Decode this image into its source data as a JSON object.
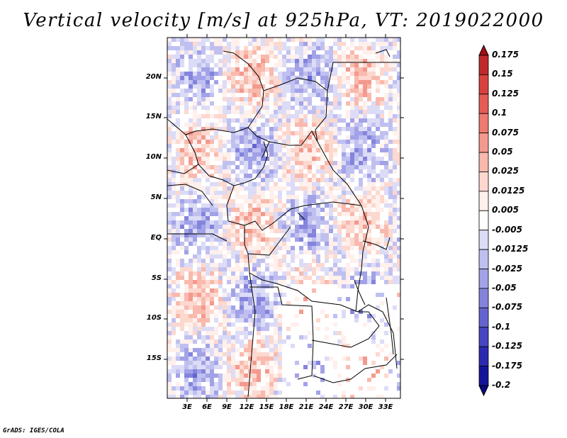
{
  "title": "Vertical velocity [m/s] at 925hPa, VT: 2019022000",
  "credit": "GrADS: IGES/COLA",
  "map": {
    "lat_labels": [
      "20N",
      "15N",
      "10N",
      "5N",
      "EQ",
      "5S",
      "10S",
      "15S"
    ],
    "lon_labels": [
      "3E",
      "6E",
      "9E",
      "12E",
      "15E",
      "18E",
      "21E",
      "24E",
      "27E",
      "30E",
      "33E"
    ]
  },
  "legend": {
    "labels": [
      "0.175",
      "0.15",
      "0.125",
      "0.1",
      "0.075",
      "0.05",
      "0.025",
      "0.0125",
      "0.005",
      "-0.005",
      "-0.0125",
      "-0.025",
      "-0.05",
      "-0.075",
      "-0.1",
      "-0.125",
      "-0.175",
      "-0.2"
    ],
    "colors": [
      "#a50f15",
      "#c0282a",
      "#d8413f",
      "#e55c55",
      "#ee7a70",
      "#f4998e",
      "#f9b9ad",
      "#fcd8cf",
      "#fff0ec",
      "#ffffff",
      "#dcdcf7",
      "#c0c0f0",
      "#a2a2e8",
      "#8484dd",
      "#6464d0",
      "#4646c2",
      "#2a2ab0",
      "#14149a",
      "#0a0a80"
    ]
  }
}
